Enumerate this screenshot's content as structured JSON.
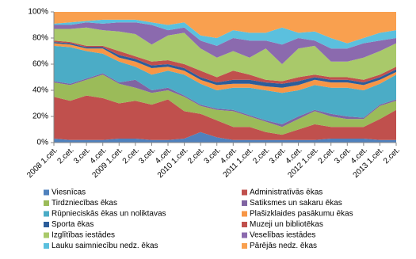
{
  "chart_data": {
    "type": "stacked_area_100",
    "categories": [
      "2008 1.cet.",
      "2.cet.",
      "3.cet.",
      "4.cet.",
      "2009 1.cet.",
      "2.cet.",
      "3.cet.",
      "4.cet.",
      "2010 1.cet.",
      "2.cet.",
      "3.cet.",
      "4.cet.",
      "2011 1.cet.",
      "2.cet.",
      "3.cet.",
      "4.cet.",
      "2012 1.cet.",
      "2.cet.",
      "3.cet.",
      "4.cet.",
      "2013 1.cet.",
      "2.cet."
    ],
    "ylim": [
      0,
      100
    ],
    "yticks": [
      {
        "value": 0,
        "label": "0%"
      },
      {
        "value": 20,
        "label": "20%"
      },
      {
        "value": 40,
        "label": "40%"
      },
      {
        "value": 60,
        "label": "60%"
      },
      {
        "value": 80,
        "label": "80%"
      },
      {
        "value": 100,
        "label": "100%"
      }
    ],
    "grid": false,
    "legend": "bottom",
    "series": [
      {
        "name": "Viesnīcas",
        "color": "#4f81bd",
        "values": [
          3,
          2,
          2,
          2,
          3,
          3,
          2,
          2,
          3,
          8,
          4,
          2,
          2,
          2,
          2,
          2,
          2,
          3,
          3,
          3,
          2,
          2
        ]
      },
      {
        "name": "Administratīvās ēkas",
        "color": "#c0504d",
        "values": [
          32,
          30,
          34,
          32,
          27,
          29,
          27,
          31,
          21,
          14,
          13,
          10,
          10,
          6,
          4,
          8,
          12,
          9,
          9,
          9,
          16,
          23
        ]
      },
      {
        "name": "Tirdzniecības ēkas",
        "color": "#9bbb59",
        "values": [
          11,
          12,
          12,
          18,
          15,
          10,
          9,
          7,
          11,
          6,
          8,
          12,
          8,
          8,
          6,
          8,
          10,
          8,
          6,
          6,
          10,
          7
        ]
      },
      {
        "name": "Satiksmes un sakaru ēkas",
        "color": "#8064a2",
        "values": [
          1,
          1,
          1,
          1,
          1,
          6,
          2,
          2,
          1,
          1,
          1,
          1,
          1,
          1,
          2,
          2,
          1,
          2,
          2,
          1,
          1,
          1
        ]
      },
      {
        "name": "Rūpnieciskās ēkas un noliktavas",
        "color": "#4bacc6",
        "values": [
          27,
          28,
          21,
          15,
          16,
          10,
          12,
          13,
          16,
          16,
          14,
          17,
          21,
          23,
          24,
          20,
          19,
          20,
          22,
          21,
          16,
          19
        ]
      },
      {
        "name": "Plašizklaides pasākumu ēkas",
        "color": "#f79646",
        "values": [
          2,
          2,
          2,
          4,
          3,
          4,
          5,
          3,
          3,
          3,
          4,
          3,
          3,
          3,
          4,
          4,
          4,
          4,
          4,
          4,
          3,
          2
        ]
      },
      {
        "name": "Sporta ēkas",
        "color": "#2c5d9a",
        "values": [
          1,
          1,
          1,
          1,
          2,
          2,
          2,
          2,
          2,
          2,
          2,
          3,
          3,
          3,
          3,
          3,
          2,
          2,
          2,
          2,
          2,
          2
        ]
      },
      {
        "name": "Muzeji un bibliotēkas",
        "color": "#c0504d",
        "values": [
          1,
          1,
          1,
          1,
          3,
          2,
          3,
          3,
          3,
          5,
          4,
          7,
          4,
          2,
          2,
          3,
          2,
          2,
          2,
          2,
          2,
          2
        ]
      },
      {
        "name": "Izglītības iestādes",
        "color": "#a9c96a",
        "values": [
          9,
          10,
          14,
          12,
          15,
          17,
          13,
          19,
          24,
          17,
          15,
          15,
          13,
          24,
          13,
          22,
          22,
          12,
          12,
          17,
          18,
          18
        ]
      },
      {
        "name": "Veselības iestādes",
        "color": "#8b6aae",
        "values": [
          3,
          3,
          4,
          5,
          7,
          9,
          15,
          4,
          4,
          6,
          9,
          10,
          13,
          6,
          15,
          8,
          4,
          10,
          10,
          11,
          8,
          4
        ]
      },
      {
        "name": "Lauku saimniecību nedz. ēkas",
        "color": "#5bc0de",
        "values": [
          1,
          2,
          1,
          3,
          2,
          2,
          2,
          4,
          4,
          4,
          6,
          6,
          6,
          6,
          13,
          4,
          7,
          8,
          4,
          4,
          6,
          6
        ]
      },
      {
        "name": "Pārējās nedz. ēkas",
        "color": "#f9a04f",
        "values": [
          9,
          8,
          7,
          6,
          6,
          6,
          8,
          10,
          8,
          18,
          20,
          14,
          16,
          16,
          12,
          16,
          15,
          20,
          24,
          20,
          16,
          14
        ]
      }
    ]
  }
}
